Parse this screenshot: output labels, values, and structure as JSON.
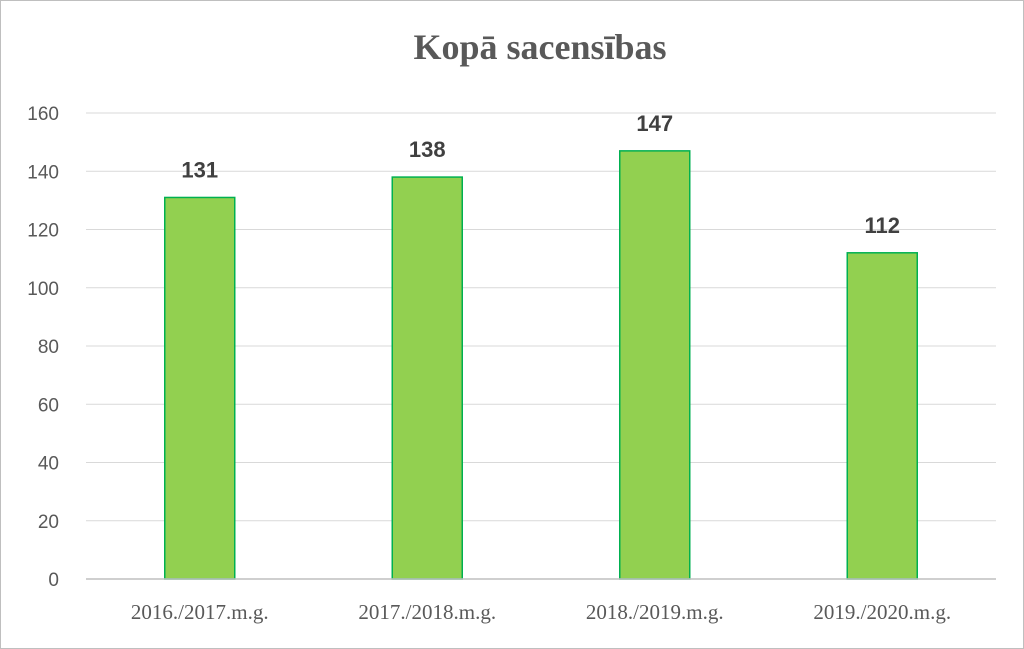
{
  "chart_data": {
    "type": "bar",
    "title": "Kopā sacensības",
    "categories": [
      "2016./2017.m.g.",
      "2017./2018.m.g.",
      "2018./2019.m.g.",
      "2019./2020.m.g."
    ],
    "values": [
      131,
      138,
      147,
      112
    ],
    "ylim": [
      0,
      160
    ],
    "yticks": [
      0,
      20,
      40,
      60,
      80,
      100,
      120,
      140,
      160
    ],
    "grid": true,
    "legend": "none",
    "data_labels": true,
    "colors": {
      "bar_fill": "#92d050",
      "bar_stroke": "#00b050",
      "grid": "#d9d9d9",
      "axis": "#bfbfbf"
    }
  }
}
